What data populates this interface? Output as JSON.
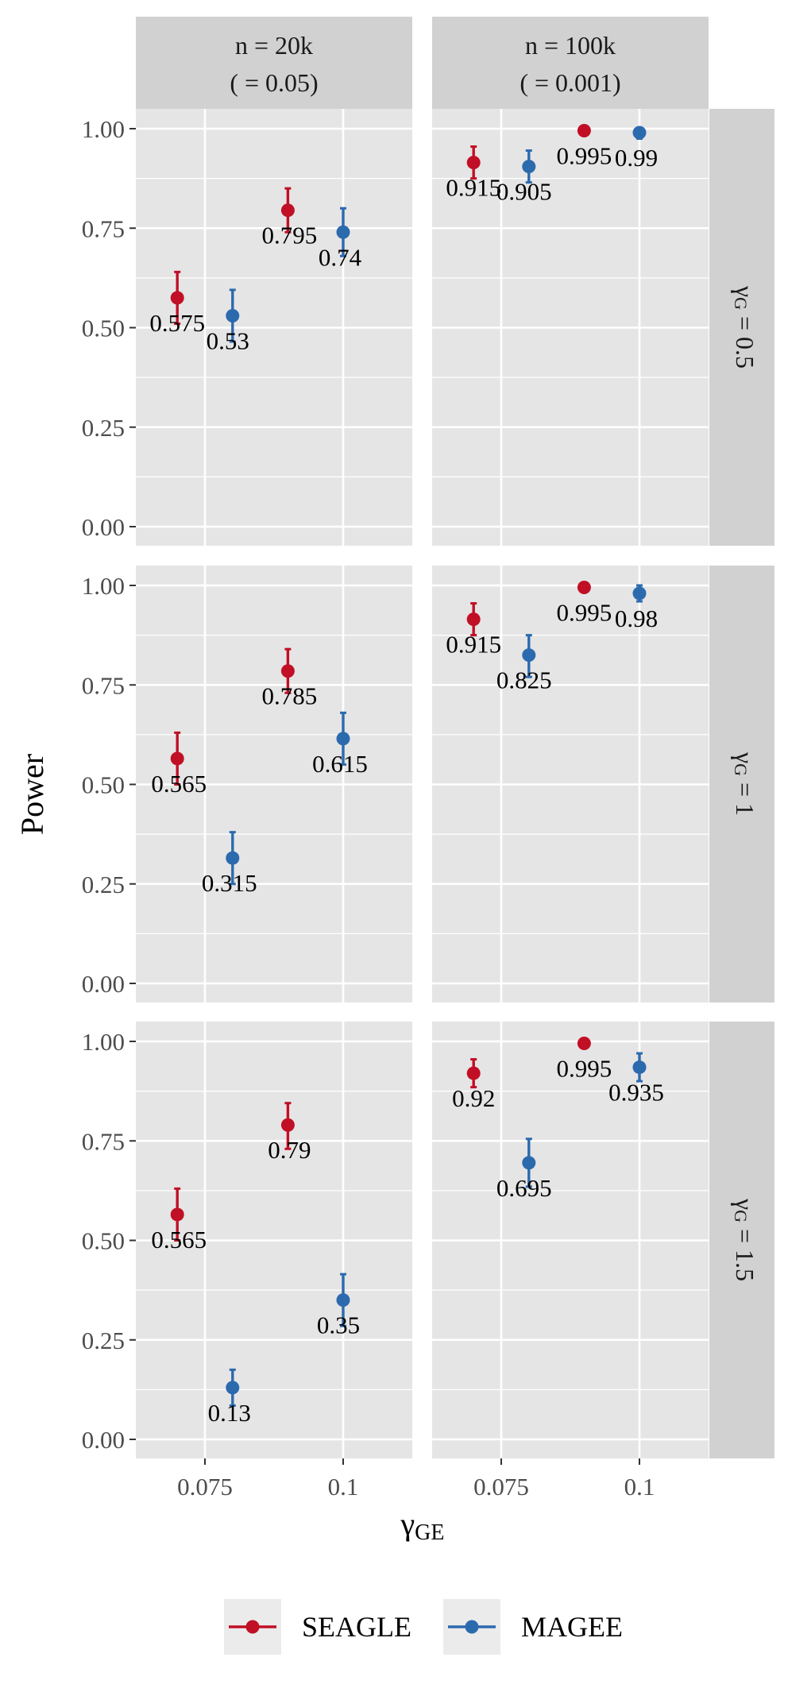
{
  "chart_data": {
    "type": "scatter",
    "facet_columns": [
      {
        "line1": "n = 20k",
        "line2": "(     = 0.05)"
      },
      {
        "line1": "n = 100k",
        "line2": "(     = 0.001)"
      }
    ],
    "facet_rows": [
      {
        "label": "γG = 0.5",
        "greek": "γ",
        "sub": "G",
        "rest": " = 0.5"
      },
      {
        "label": "γG = 1",
        "greek": "γ",
        "sub": "G",
        "rest": " = 1"
      },
      {
        "label": "γG = 1.5",
        "greek": "γ",
        "sub": "G",
        "rest": " = 1.5"
      }
    ],
    "x_categories": [
      0.07,
      0.08,
      0.09,
      0.1
    ],
    "x_tick_labels": [
      "0.075",
      "0.1"
    ],
    "x_tick_values": [
      0.075,
      0.1
    ],
    "xlim": [
      0.0625,
      0.1125
    ],
    "ylim": [
      0,
      1.04
    ],
    "y_tick_labels": [
      "0.00",
      "0.25",
      "0.50",
      "0.75",
      "1.00"
    ],
    "y_tick_values": [
      0,
      0.25,
      0.5,
      0.75,
      1.0
    ],
    "xlabel": "γGE",
    "xlabel_greek": "γ",
    "xlabel_sub": "GE",
    "ylabel": "Power",
    "series": [
      {
        "name": "SEAGLE",
        "color": "#C10F26",
        "x_index": [
          0,
          2
        ]
      },
      {
        "name": "MAGEE",
        "color": "#2C6AAE",
        "x_index": [
          1,
          3
        ]
      }
    ],
    "points": [
      {
        "row": 0,
        "col": 0,
        "series": "SEAGLE",
        "x": 0.07,
        "y": 0.575,
        "lo": 0.51,
        "hi": 0.64,
        "label": "0.575"
      },
      {
        "row": 0,
        "col": 0,
        "series": "MAGEE",
        "x": 0.08,
        "y": 0.53,
        "lo": 0.465,
        "hi": 0.595,
        "label": "0.53"
      },
      {
        "row": 0,
        "col": 0,
        "series": "SEAGLE",
        "x": 0.09,
        "y": 0.795,
        "lo": 0.74,
        "hi": 0.85,
        "label": "0.795"
      },
      {
        "row": 0,
        "col": 0,
        "series": "MAGEE",
        "x": 0.1,
        "y": 0.74,
        "lo": 0.68,
        "hi": 0.8,
        "label": "0.74"
      },
      {
        "row": 0,
        "col": 1,
        "series": "SEAGLE",
        "x": 0.07,
        "y": 0.915,
        "lo": 0.875,
        "hi": 0.955,
        "label": "0.915"
      },
      {
        "row": 0,
        "col": 1,
        "series": "MAGEE",
        "x": 0.08,
        "y": 0.905,
        "lo": 0.865,
        "hi": 0.945,
        "label": "0.905"
      },
      {
        "row": 0,
        "col": 1,
        "series": "SEAGLE",
        "x": 0.09,
        "y": 0.995,
        "lo": 0.985,
        "hi": 1.0,
        "label": "0.995"
      },
      {
        "row": 0,
        "col": 1,
        "series": "MAGEE",
        "x": 0.1,
        "y": 0.99,
        "lo": 0.975,
        "hi": 1.0,
        "label": "0.99"
      },
      {
        "row": 1,
        "col": 0,
        "series": "SEAGLE",
        "x": 0.07,
        "y": 0.565,
        "lo": 0.5,
        "hi": 0.63,
        "label": "0.565"
      },
      {
        "row": 1,
        "col": 0,
        "series": "MAGEE",
        "x": 0.08,
        "y": 0.315,
        "lo": 0.25,
        "hi": 0.38,
        "label": "0.315"
      },
      {
        "row": 1,
        "col": 0,
        "series": "SEAGLE",
        "x": 0.09,
        "y": 0.785,
        "lo": 0.73,
        "hi": 0.84,
        "label": "0.785"
      },
      {
        "row": 1,
        "col": 0,
        "series": "MAGEE",
        "x": 0.1,
        "y": 0.615,
        "lo": 0.55,
        "hi": 0.68,
        "label": "0.615"
      },
      {
        "row": 1,
        "col": 1,
        "series": "SEAGLE",
        "x": 0.07,
        "y": 0.915,
        "lo": 0.875,
        "hi": 0.955,
        "label": "0.915"
      },
      {
        "row": 1,
        "col": 1,
        "series": "MAGEE",
        "x": 0.08,
        "y": 0.825,
        "lo": 0.77,
        "hi": 0.875,
        "label": "0.825"
      },
      {
        "row": 1,
        "col": 1,
        "series": "SEAGLE",
        "x": 0.09,
        "y": 0.995,
        "lo": 0.985,
        "hi": 1.0,
        "label": "0.995"
      },
      {
        "row": 1,
        "col": 1,
        "series": "MAGEE",
        "x": 0.1,
        "y": 0.98,
        "lo": 0.96,
        "hi": 1.0,
        "label": "0.98"
      },
      {
        "row": 2,
        "col": 0,
        "series": "SEAGLE",
        "x": 0.07,
        "y": 0.565,
        "lo": 0.5,
        "hi": 0.63,
        "label": "0.565"
      },
      {
        "row": 2,
        "col": 0,
        "series": "MAGEE",
        "x": 0.08,
        "y": 0.13,
        "lo": 0.085,
        "hi": 0.175,
        "label": "0.13"
      },
      {
        "row": 2,
        "col": 0,
        "series": "SEAGLE",
        "x": 0.09,
        "y": 0.79,
        "lo": 0.73,
        "hi": 0.845,
        "label": "0.79"
      },
      {
        "row": 2,
        "col": 0,
        "series": "MAGEE",
        "x": 0.1,
        "y": 0.35,
        "lo": 0.285,
        "hi": 0.415,
        "label": "0.35"
      },
      {
        "row": 2,
        "col": 1,
        "series": "SEAGLE",
        "x": 0.07,
        "y": 0.92,
        "lo": 0.885,
        "hi": 0.955,
        "label": "0.92"
      },
      {
        "row": 2,
        "col": 1,
        "series": "MAGEE",
        "x": 0.08,
        "y": 0.695,
        "lo": 0.635,
        "hi": 0.755,
        "label": "0.695"
      },
      {
        "row": 2,
        "col": 1,
        "series": "SEAGLE",
        "x": 0.09,
        "y": 0.995,
        "lo": 0.985,
        "hi": 1.0,
        "label": "0.995"
      },
      {
        "row": 2,
        "col": 1,
        "series": "MAGEE",
        "x": 0.1,
        "y": 0.935,
        "lo": 0.9,
        "hi": 0.97,
        "label": "0.935"
      }
    ],
    "legend": {
      "position": "bottom",
      "entries": [
        "SEAGLE",
        "MAGEE"
      ]
    },
    "grid": true,
    "colors": {
      "panel_bg": "#E5E5E5",
      "strip_bg": "#D1D1D1",
      "grid": "#FFFFFF",
      "seagle": "#C10F26",
      "magee": "#2C6AAE"
    }
  }
}
